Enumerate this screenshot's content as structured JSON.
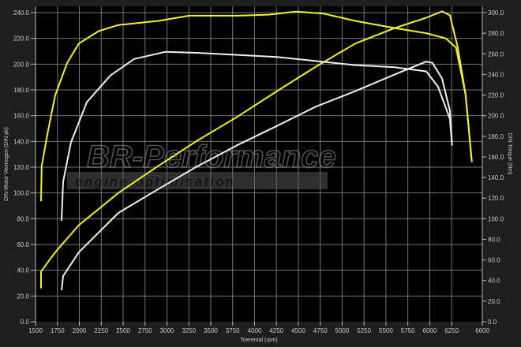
{
  "chart_data": {
    "type": "line",
    "xlabel": "Toerental (rpm)",
    "ylabel_left": "DIN Motor Vermogen (DIN pk)",
    "ylabel_right": "DIN Torque (Nm)",
    "xlim": [
      1500,
      6600
    ],
    "ylim_left": [
      0,
      240
    ],
    "ylim_right": [
      0,
      300
    ],
    "x_ticks": [
      1500,
      1750,
      2000,
      2250,
      2500,
      2750,
      3000,
      3250,
      3500,
      3750,
      4000,
      4250,
      4500,
      4750,
      5000,
      5250,
      5500,
      5750,
      6000,
      6250,
      6600
    ],
    "y_ticks_left": [
      "0.0",
      "20.0",
      "40.0",
      "60.0",
      "80.0",
      "100.0",
      "120.0",
      "140.0",
      "160.0",
      "180.0",
      "200.0",
      "220.0",
      "240.0"
    ],
    "y_ticks_right": [
      "0.0",
      "20.0",
      "40.0",
      "60.0",
      "80.0",
      "100.0",
      "120.0",
      "140.0",
      "160.0",
      "180.0",
      "200.0",
      "220.0",
      "240.0",
      "260.0",
      "280.0",
      "300.0"
    ],
    "grid": true,
    "background": "#000000",
    "watermark": "BR-Performance engine optimisation",
    "series": [
      {
        "axis": "right",
        "color": "#f2f230",
        "points": [
          [
            1563,
            117
          ],
          [
            1570,
            151
          ],
          [
            1635,
            182
          ],
          [
            1725,
            220
          ],
          [
            1860,
            251
          ],
          [
            1995,
            270
          ],
          [
            2220,
            282
          ],
          [
            2445,
            288
          ],
          [
            2900,
            292
          ],
          [
            3255,
            297
          ],
          [
            3800,
            297
          ],
          [
            4160,
            298
          ],
          [
            4470,
            301
          ],
          [
            4790,
            299
          ],
          [
            5150,
            292
          ],
          [
            5600,
            285
          ],
          [
            5960,
            280
          ],
          [
            6185,
            275
          ],
          [
            6300,
            266
          ],
          [
            6410,
            220
          ],
          [
            6480,
            155
          ]
        ]
      },
      {
        "axis": "left",
        "color": "#f2f230",
        "points": [
          [
            1563,
            26
          ],
          [
            1563,
            39
          ],
          [
            1725,
            54
          ],
          [
            1995,
            75
          ],
          [
            2445,
            100
          ],
          [
            2900,
            121
          ],
          [
            3355,
            141
          ],
          [
            3800,
            159
          ],
          [
            4255,
            179
          ],
          [
            4700,
            198
          ],
          [
            5150,
            216
          ],
          [
            5600,
            228
          ],
          [
            5960,
            236
          ],
          [
            6140,
            241
          ],
          [
            6230,
            238
          ],
          [
            6320,
            213
          ],
          [
            6410,
            176
          ],
          [
            6480,
            124
          ]
        ]
      },
      {
        "axis": "right",
        "color": "#f0f0f0",
        "points": [
          [
            1797,
            98
          ],
          [
            1815,
            136
          ],
          [
            1905,
            174
          ],
          [
            2085,
            213
          ],
          [
            2355,
            239
          ],
          [
            2625,
            255
          ],
          [
            2985,
            262
          ],
          [
            3345,
            261
          ],
          [
            3800,
            259
          ],
          [
            4255,
            257
          ],
          [
            4700,
            253
          ],
          [
            5150,
            249
          ],
          [
            5600,
            247
          ],
          [
            5960,
            243
          ],
          [
            6095,
            228
          ],
          [
            6230,
            197
          ],
          [
            6255,
            171
          ]
        ]
      },
      {
        "axis": "left",
        "color": "#f0f0f0",
        "points": [
          [
            1797,
            24.5
          ],
          [
            1815,
            35.5
          ],
          [
            1995,
            54
          ],
          [
            2445,
            84.5
          ],
          [
            2900,
            103
          ],
          [
            3355,
            121
          ],
          [
            3800,
            137
          ],
          [
            4255,
            152
          ],
          [
            4700,
            167
          ],
          [
            5150,
            179
          ],
          [
            5600,
            192
          ],
          [
            5960,
            202
          ],
          [
            6030,
            201
          ],
          [
            6140,
            189
          ],
          [
            6230,
            164
          ],
          [
            6255,
            137
          ]
        ]
      }
    ]
  }
}
